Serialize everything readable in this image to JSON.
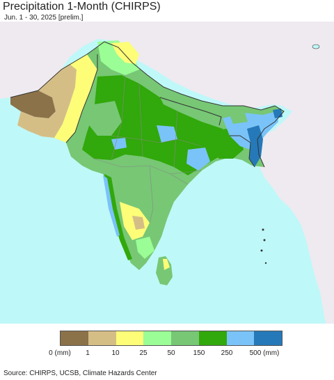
{
  "title": "Precipitation 1-Month (CHIRPS)",
  "subtitle": "Jun. 1 - 30, 2025 [prelim.]",
  "colors": {
    "ocean": "#bff8f8",
    "outside_land": "#eeeaf0",
    "border": "#333333",
    "state_border": "#888888"
  },
  "legend": {
    "bins": [
      {
        "label": "0 (mm)",
        "color": "#8c7249"
      },
      {
        "label": "1",
        "color": "#d5be86"
      },
      {
        "label": "10",
        "color": "#fdfd78"
      },
      {
        "label": "25",
        "color": "#9afd96"
      },
      {
        "label": "50",
        "color": "#77c775"
      },
      {
        "label": "150",
        "color": "#31a80b"
      },
      {
        "label": "250",
        "color": "#7ac3f8"
      },
      {
        "label": "500 (mm)",
        "color": "#2579b8"
      }
    ]
  },
  "footer": "Source: CHIRPS, UCSB, Climate Hazards Center"
}
